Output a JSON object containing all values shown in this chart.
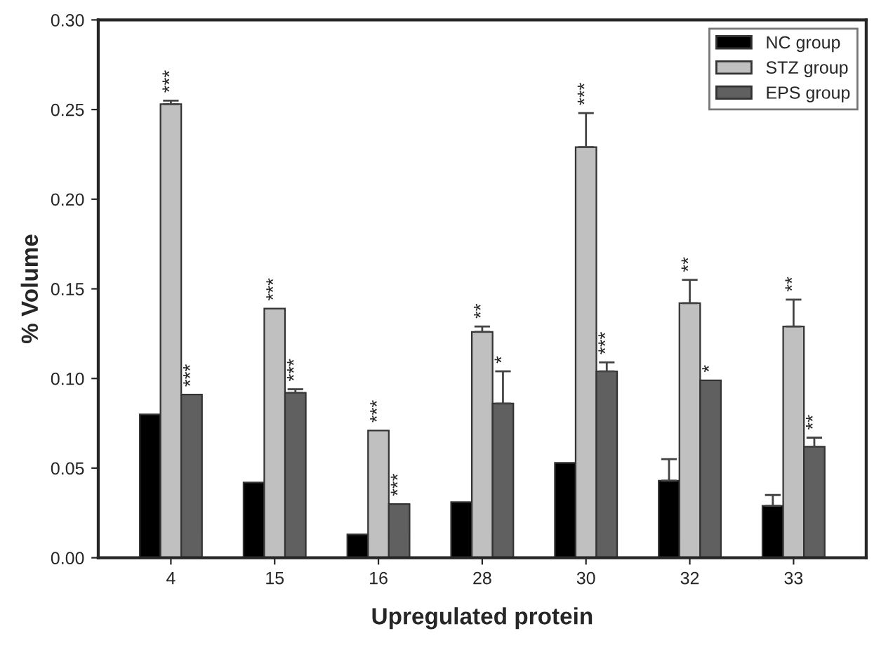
{
  "chart_data": {
    "type": "bar",
    "xlabel": "Upregulated protein",
    "ylabel": "% Volume",
    "categories": [
      "4",
      "15",
      "16",
      "28",
      "30",
      "32",
      "33"
    ],
    "series": [
      {
        "name": "NC group",
        "color": "#000000",
        "values": [
          0.08,
          0.042,
          0.013,
          0.031,
          0.053,
          0.043,
          0.029
        ],
        "errors": [
          null,
          null,
          null,
          null,
          null,
          [
            0.043,
            0.055
          ],
          [
            0.029,
            0.035
          ]
        ]
      },
      {
        "name": "STZ group",
        "color": "#c0c0c0",
        "values": [
          0.253,
          0.139,
          0.071,
          0.126,
          0.229,
          0.142,
          0.129
        ],
        "errors": [
          [
            0.253,
            0.255
          ],
          null,
          null,
          [
            0.126,
            0.129
          ],
          [
            0.229,
            0.248
          ],
          [
            0.142,
            0.155
          ],
          [
            0.129,
            0.144
          ]
        ],
        "value_labels": [
          "***",
          "***",
          "***",
          "**",
          "***",
          "**",
          "**"
        ]
      },
      {
        "name": "EPS group",
        "color": "#606060",
        "values": [
          0.091,
          0.092,
          0.03,
          0.086,
          0.104,
          0.099,
          0.062
        ],
        "errors": [
          null,
          [
            0.092,
            0.094
          ],
          null,
          [
            0.086,
            0.104
          ],
          [
            0.104,
            0.109
          ],
          null,
          [
            0.062,
            0.067
          ]
        ],
        "value_labels": [
          "***",
          "***",
          "***",
          "*",
          "***",
          "*",
          "**"
        ]
      }
    ],
    "ylim": [
      0,
      0.3
    ],
    "yticks": [
      {
        "value": 0,
        "label": "0.00"
      },
      {
        "value": 0.05,
        "label": "0.05"
      },
      {
        "value": 0.1,
        "label": "0.10"
      },
      {
        "value": 0.15,
        "label": "0.15"
      },
      {
        "value": 0.2,
        "label": "0.20"
      },
      {
        "value": 0.25,
        "label": "0.25"
      },
      {
        "value": 0.3,
        "label": "0.30"
      }
    ],
    "legend": "top right",
    "grid": false
  }
}
